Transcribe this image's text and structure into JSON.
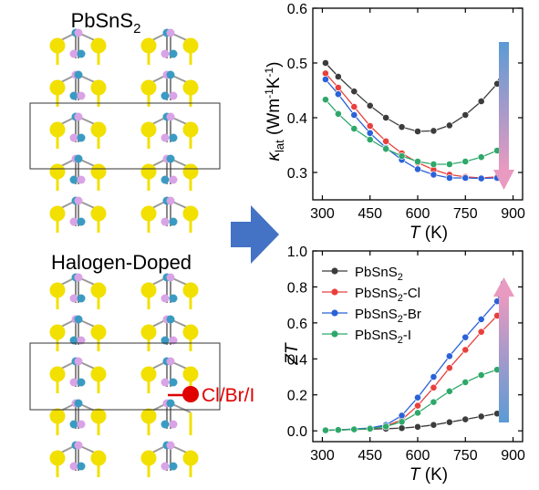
{
  "panels": {
    "top_title": "PbSnS",
    "top_title_sub": "2",
    "bottom_title": "Halogen-Doped",
    "dopant_label": "Cl/Br/I"
  },
  "colors": {
    "S_atom": "#f2e000",
    "Pb_atom": "#d9a3e6",
    "Sn_atom": "#3a9bc2",
    "dopant_atom": "#e00000",
    "arrow": "#4472c4",
    "PbSnS2": "#3c3c3c",
    "PbSnS2-Cl": "#e8403c",
    "PbSnS2-Br": "#2a62d8",
    "PbSnS2-I": "#2ea86a",
    "gradient_blue": "#5b9bd5",
    "gradient_pink": "#e89ac0"
  },
  "chart_data": [
    {
      "type": "line",
      "ylabel": "κlat (Wm-1K-1)",
      "ylabel_parts": {
        "symbol": "κ",
        "sub": "lat",
        "unit_open": " (Wm",
        "exp1": "-1",
        "mid": "K",
        "exp2": "-1",
        "close": ")"
      },
      "xlabel": "T (K)",
      "xlabel_parts": {
        "symbol": "T",
        "unit": " (K)"
      },
      "xlim": [
        270,
        930
      ],
      "ylim": [
        0.25,
        0.6
      ],
      "xticks": [
        300,
        450,
        600,
        750,
        900
      ],
      "yticks": [
        0.3,
        0.4,
        0.5,
        0.6
      ],
      "ytick_labels": [
        "0.3",
        "0.4",
        "0.5",
        "0.6"
      ],
      "x": [
        310,
        350,
        400,
        450,
        500,
        550,
        600,
        650,
        700,
        750,
        800,
        850,
        870
      ],
      "series": [
        {
          "key": "PbSnS2",
          "values": [
            0.5,
            0.475,
            0.448,
            0.422,
            0.4,
            0.383,
            0.375,
            0.376,
            0.386,
            0.405,
            0.43,
            0.462,
            0.491
          ]
        },
        {
          "key": "PbSnS2-Cl",
          "values": [
            0.481,
            0.455,
            0.42,
            0.385,
            0.357,
            0.335,
            0.318,
            0.305,
            0.296,
            0.292,
            0.29,
            0.292,
            0.293
          ]
        },
        {
          "key": "PbSnS2-Br",
          "values": [
            0.47,
            0.443,
            0.405,
            0.372,
            0.345,
            0.323,
            0.306,
            0.296,
            0.29,
            0.29,
            0.289,
            0.29,
            0.29
          ]
        },
        {
          "key": "PbSnS2-I",
          "values": [
            0.433,
            0.407,
            0.38,
            0.36,
            0.343,
            0.33,
            0.32,
            0.315,
            0.315,
            0.32,
            0.328,
            0.34,
            0.353
          ]
        }
      ]
    },
    {
      "type": "line",
      "ylabel": "ZT",
      "xlabel": "T (K)",
      "xlabel_parts": {
        "symbol": "T",
        "unit": " (K)"
      },
      "xlim": [
        270,
        930
      ],
      "ylim": [
        -0.06,
        1.0
      ],
      "xticks": [
        300,
        450,
        600,
        750,
        900
      ],
      "yticks": [
        0.0,
        0.2,
        0.4,
        0.6,
        0.8,
        1.0
      ],
      "ytick_labels": [
        "0.0",
        "0.2",
        "0.4",
        "0.6",
        "0.8",
        "1.0"
      ],
      "x": [
        310,
        350,
        400,
        450,
        500,
        550,
        600,
        650,
        700,
        750,
        800,
        850,
        870
      ],
      "series": [
        {
          "key": "PbSnS2",
          "name": "PbSnS",
          "name_sub": "2",
          "values": [
            0.003,
            0.005,
            0.008,
            0.01,
            0.012,
            0.015,
            0.022,
            0.033,
            0.048,
            0.064,
            0.08,
            0.096,
            0.103
          ]
        },
        {
          "key": "PbSnS2-Cl",
          "name": "PbSnS",
          "name_sub": "2",
          "name_tail": "-Cl",
          "values": [
            0.003,
            0.005,
            0.008,
            0.012,
            0.026,
            0.062,
            0.14,
            0.24,
            0.35,
            0.45,
            0.55,
            0.64,
            0.7
          ]
        },
        {
          "key": "PbSnS2-Br",
          "name": "PbSnS",
          "name_sub": "2",
          "name_tail": "-Br",
          "values": [
            0.003,
            0.006,
            0.01,
            0.016,
            0.033,
            0.085,
            0.185,
            0.3,
            0.415,
            0.52,
            0.62,
            0.72,
            0.82
          ]
        },
        {
          "key": "PbSnS2-I",
          "name": "PbSnS",
          "name_sub": "2",
          "name_tail": "-I",
          "values": [
            0.003,
            0.005,
            0.008,
            0.012,
            0.024,
            0.05,
            0.1,
            0.16,
            0.22,
            0.27,
            0.31,
            0.34,
            0.36
          ]
        }
      ],
      "legend_position": "top-left"
    }
  ]
}
